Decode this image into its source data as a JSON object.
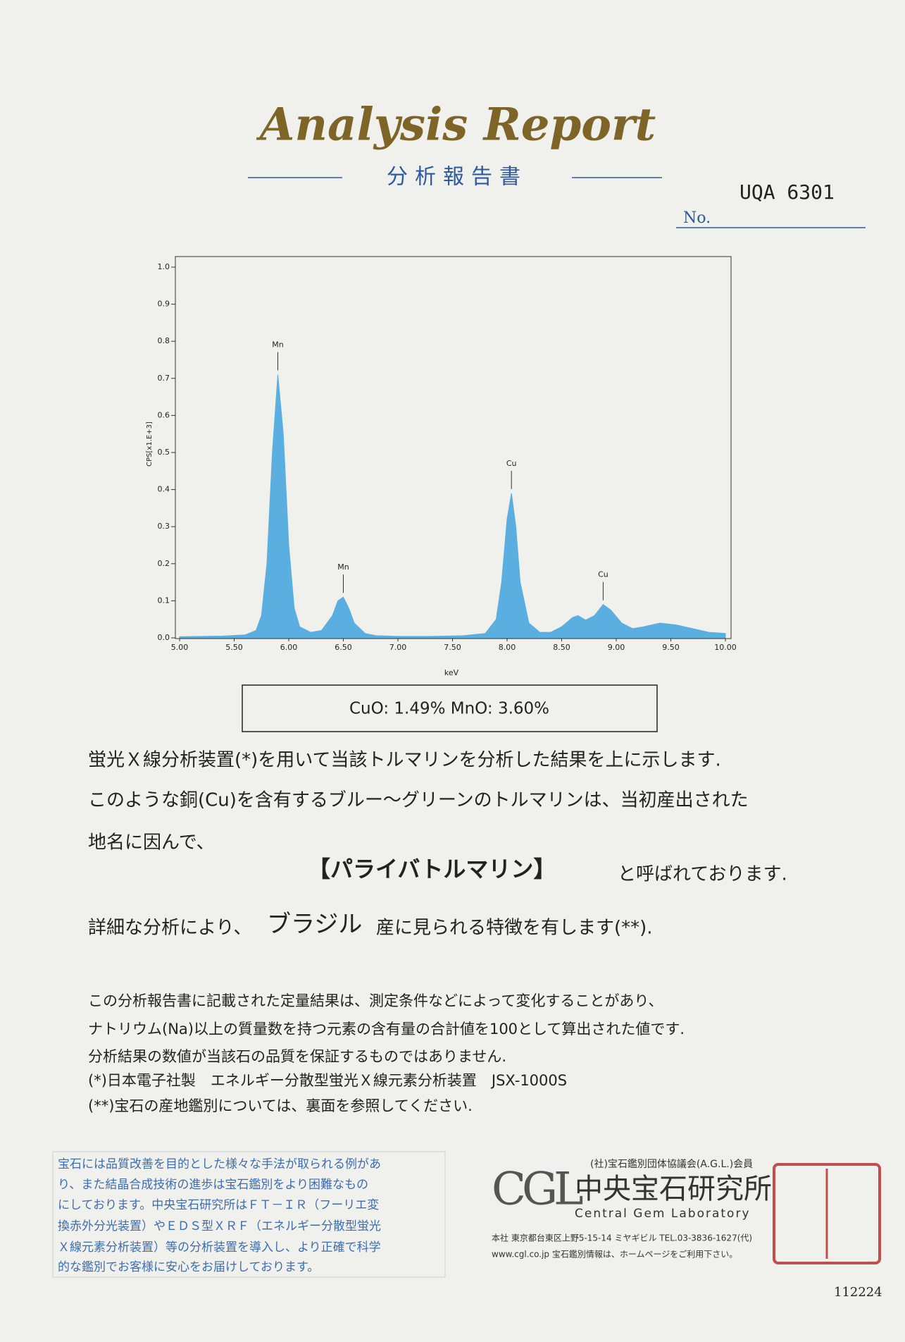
{
  "header": {
    "title": "Analysis Report",
    "subtitle": "分析報告書",
    "number_label": "No.",
    "number": "UQA 6301"
  },
  "chart_data": {
    "type": "area",
    "color": "#5aaee0",
    "y_label": "CPS[x1.E+3]",
    "x_label": "keV",
    "x": [
      5.0,
      5.2,
      5.4,
      5.6,
      5.7,
      5.75,
      5.8,
      5.85,
      5.9,
      5.95,
      6.0,
      6.05,
      6.1,
      6.2,
      6.3,
      6.4,
      6.45,
      6.5,
      6.55,
      6.6,
      6.7,
      6.8,
      7.0,
      7.3,
      7.6,
      7.8,
      7.9,
      7.95,
      8.0,
      8.04,
      8.08,
      8.12,
      8.2,
      8.3,
      8.4,
      8.5,
      8.6,
      8.65,
      8.72,
      8.8,
      8.88,
      8.95,
      9.05,
      9.15,
      9.25,
      9.4,
      9.55,
      9.7,
      9.85,
      10.0
    ],
    "values": [
      0.003,
      0.004,
      0.005,
      0.008,
      0.02,
      0.06,
      0.2,
      0.5,
      0.71,
      0.55,
      0.25,
      0.08,
      0.03,
      0.015,
      0.02,
      0.06,
      0.1,
      0.11,
      0.08,
      0.04,
      0.012,
      0.006,
      0.004,
      0.004,
      0.006,
      0.012,
      0.05,
      0.15,
      0.32,
      0.39,
      0.3,
      0.15,
      0.04,
      0.015,
      0.015,
      0.03,
      0.055,
      0.06,
      0.048,
      0.06,
      0.09,
      0.075,
      0.04,
      0.025,
      0.03,
      0.04,
      0.035,
      0.025,
      0.015,
      0.012
    ],
    "annotations": [
      {
        "text": "Mn",
        "x": 5.9,
        "y": 0.71
      },
      {
        "text": "Mn",
        "x": 6.5,
        "y": 0.11
      },
      {
        "text": "Cu",
        "x": 8.04,
        "y": 0.39
      },
      {
        "text": "Cu",
        "x": 8.88,
        "y": 0.09
      }
    ],
    "xlim": [
      5.0,
      10.0
    ],
    "xticks": [
      {
        "value": 5,
        "label": "5.00"
      },
      {
        "value": 5.5,
        "label": "5.50"
      },
      {
        "value": 6,
        "label": "6.00"
      },
      {
        "value": 6.5,
        "label": "6.50"
      },
      {
        "value": 7,
        "label": "7.00"
      },
      {
        "value": 7.5,
        "label": "7.50"
      },
      {
        "value": 8,
        "label": "8.00"
      },
      {
        "value": 8.5,
        "label": "8.50"
      },
      {
        "value": 9,
        "label": "9.00"
      },
      {
        "value": 9.5,
        "label": "9.50"
      },
      {
        "value": 10,
        "label": "10.00"
      }
    ],
    "ylim": [
      0,
      1.0
    ],
    "yticks": [
      {
        "value": 0,
        "label": "0.0"
      },
      0.1,
      0.2,
      0.3,
      0.4,
      0.5,
      0.6,
      0.7,
      0.8,
      0.9,
      {
        "value": 1,
        "label": "1.0"
      }
    ]
  },
  "result": "CuO: 1.49%  MnO: 3.60%",
  "body": {
    "lines": [
      "蛍光Ｘ線分析装置(*)を用いて当該トルマリンを分析した結果を上に示します.",
      "このような銅(Cu)を含有するブルー～グリーンのトルマリンは、当初産出された",
      "地名に因んで、"
    ],
    "name": "【パライバトルマリン】",
    "name_suffix": "と呼ばれております.",
    "origin_prefix": "詳細な分析により、",
    "origin": "ブラジル",
    "origin_suffix": "産に見られる特徴を有します(**)."
  },
  "notes": [
    "この分析報告書に記載された定量結果は、測定条件などによって変化することがあり、",
    "ナトリウム(Na)以上の質量数を持つ元素の含有量の合計値を100として算出された値です.",
    "分析結果の数値が当該石の品質を保証するものではありません.",
    "(*)日本電子社製　エネルギー分散型蛍光Ｘ線元素分析装置　JSX-1000S",
    "(**)宝石の産地鑑別については、裏面を参照してください."
  ],
  "info_box": [
    "宝石には品質改善を目的とした様々な手法が取られる例があ",
    "り、また結晶合成技術の進歩は宝石鑑別をより困難なもの",
    "にしております。中央宝石研究所はＦＴ－ＩＲ（フーリエ変",
    "換赤外分光装置）やＥＤＳ型ＸＲＦ（エネルギー分散型蛍光",
    "Ｘ線元素分析装置）等の分析装置を導入し、より正確で科学",
    "的な鑑別でお客様に安心をお届けしております。"
  ],
  "lab": {
    "association": "(社)宝石鑑別団体協議会(A.G.L.)会員",
    "logo": "CGL",
    "name_ja": "中央宝石研究所",
    "name_en": "Central Gem Laboratory",
    "address": "本社 東京都台東区上野5-15-14 ミヤギビル TEL.03-3836-1627(代)",
    "web": "www.cgl.co.jp 宝石鑑別情報は、ホームページをご利用下さい。"
  },
  "serial": "112224"
}
